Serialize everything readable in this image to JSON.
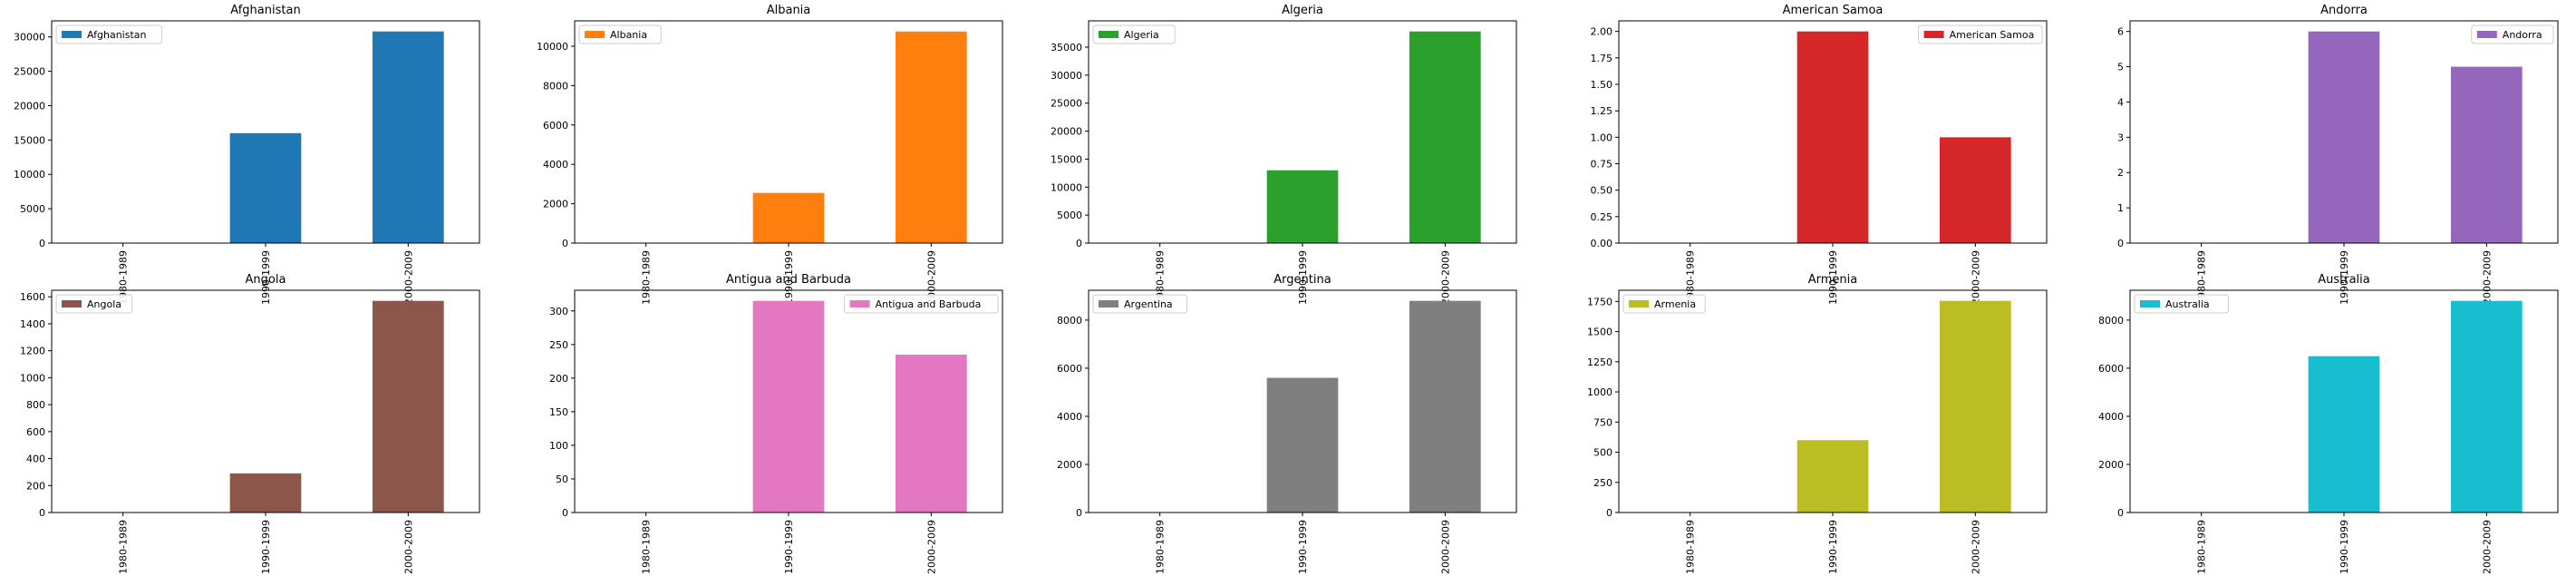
{
  "chart_data": [
    {
      "type": "bar",
      "title": "Afghanistan",
      "categories": [
        "1980-1989",
        "1990-1999",
        "2000-2009"
      ],
      "series": [
        {
          "name": "Afghanistan",
          "values": [
            0,
            16000,
            30800
          ]
        }
      ],
      "ylim": [
        0,
        32340
      ],
      "yticks": [
        0,
        5000,
        10000,
        15000,
        20000,
        25000,
        30000
      ],
      "legend": "upper left",
      "color": "#1f77b4"
    },
    {
      "type": "bar",
      "title": "Albania",
      "categories": [
        "1980-1989",
        "1990-1999",
        "2000-2009"
      ],
      "series": [
        {
          "name": "Albania",
          "values": [
            0,
            2550,
            10750
          ]
        }
      ],
      "ylim": [
        0,
        11288
      ],
      "yticks": [
        0,
        2000,
        4000,
        6000,
        8000,
        10000
      ],
      "legend": "upper left",
      "color": "#ff7f0e"
    },
    {
      "type": "bar",
      "title": "Algeria",
      "categories": [
        "1980-1989",
        "1990-1999",
        "2000-2009"
      ],
      "series": [
        {
          "name": "Algeria",
          "values": [
            0,
            13000,
            37800
          ]
        }
      ],
      "ylim": [
        0,
        39690
      ],
      "yticks": [
        0,
        5000,
        10000,
        15000,
        20000,
        25000,
        30000,
        35000
      ],
      "legend": "upper left",
      "color": "#2ca02c"
    },
    {
      "type": "bar",
      "title": "American Samoa",
      "categories": [
        "1980-1989",
        "1990-1999",
        "2000-2009"
      ],
      "series": [
        {
          "name": "American Samoa",
          "values": [
            0,
            2,
            1
          ]
        }
      ],
      "ylim": [
        0,
        2.1
      ],
      "yticks": [
        0.0,
        0.25,
        0.5,
        0.75,
        1.0,
        1.25,
        1.5,
        1.75,
        2.0
      ],
      "ytick_decimals": 2,
      "legend": "upper right",
      "color": "#d62728"
    },
    {
      "type": "bar",
      "title": "Andorra",
      "categories": [
        "1980-1989",
        "1990-1999",
        "2000-2009"
      ],
      "series": [
        {
          "name": "Andorra",
          "values": [
            0,
            6,
            5
          ]
        }
      ],
      "ylim": [
        0,
        6.3
      ],
      "yticks": [
        0,
        1,
        2,
        3,
        4,
        5,
        6
      ],
      "legend": "upper right",
      "color": "#9467bd"
    },
    {
      "type": "bar",
      "title": "Angola",
      "categories": [
        "1980-1989",
        "1990-1999",
        "2000-2009"
      ],
      "series": [
        {
          "name": "Angola",
          "values": [
            0,
            290,
            1570
          ]
        }
      ],
      "ylim": [
        0,
        1648.5
      ],
      "yticks": [
        0,
        200,
        400,
        600,
        800,
        1000,
        1200,
        1400,
        1600
      ],
      "legend": "upper left",
      "color": "#8c564b"
    },
    {
      "type": "bar",
      "title": "Antigua and Barbuda",
      "categories": [
        "1980-1989",
        "1990-1999",
        "2000-2009"
      ],
      "series": [
        {
          "name": "Antigua and Barbuda",
          "values": [
            0,
            315,
            235
          ]
        }
      ],
      "ylim": [
        0,
        330.75
      ],
      "yticks": [
        0,
        50,
        100,
        150,
        200,
        250,
        300
      ],
      "legend": "upper right",
      "color": "#e377c2"
    },
    {
      "type": "bar",
      "title": "Argentina",
      "categories": [
        "1980-1989",
        "1990-1999",
        "2000-2009"
      ],
      "series": [
        {
          "name": "Argentina",
          "values": [
            0,
            5600,
            8800
          ]
        }
      ],
      "ylim": [
        0,
        9240
      ],
      "yticks": [
        0,
        2000,
        4000,
        6000,
        8000
      ],
      "legend": "upper left",
      "color": "#7f7f7f"
    },
    {
      "type": "bar",
      "title": "Armenia",
      "categories": [
        "1980-1989",
        "1990-1999",
        "2000-2009"
      ],
      "series": [
        {
          "name": "Armenia",
          "values": [
            0,
            600,
            1755
          ]
        }
      ],
      "ylim": [
        0,
        1842.75
      ],
      "yticks": [
        0,
        250,
        500,
        750,
        1000,
        1250,
        1500,
        1750
      ],
      "legend": "upper left",
      "color": "#bcbd22"
    },
    {
      "type": "bar",
      "title": "Australia",
      "categories": [
        "1980-1989",
        "1990-1999",
        "2000-2009"
      ],
      "series": [
        {
          "name": "Australia",
          "values": [
            0,
            6500,
            8800
          ]
        }
      ],
      "ylim": [
        0,
        9240
      ],
      "yticks": [
        0,
        2000,
        4000,
        6000,
        8000
      ],
      "legend": "upper left",
      "color": "#17becf"
    }
  ]
}
